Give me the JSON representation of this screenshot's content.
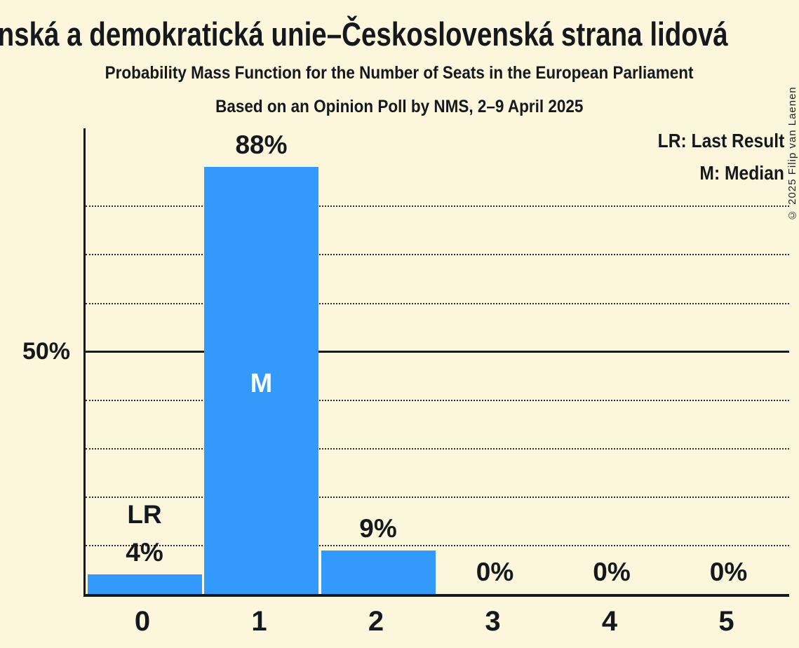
{
  "title": "Křesťanská a demokratická unie–Československá strana lidová",
  "subtitle": "Probability Mass Function for the Number of Seats in the European Parliament",
  "poll_source": "Based on an Opinion Poll by NMS, 2–9 April 2025",
  "legend": {
    "lr": "LR: Last Result",
    "m": "M: Median"
  },
  "copyright": "© 2025 Filip van Laenen",
  "colors": {
    "background": "#FCF7DC",
    "bar": "#3399FA",
    "text": "#15191E",
    "bar_inner_label": "#FFFFFF",
    "gridline": "#2E2E2E",
    "axis": "#15191E"
  },
  "chart_data": {
    "type": "bar",
    "title": "Probability Mass Function for the Number of Seats in the European Parliament",
    "categories": [
      "0",
      "1",
      "2",
      "3",
      "4",
      "5"
    ],
    "values": [
      4,
      88,
      9,
      0,
      0,
      0
    ],
    "value_labels": [
      "4%",
      "88%",
      "9%",
      "0%",
      "0%",
      "0%"
    ],
    "xlabel": "",
    "ylabel": "",
    "grid": "dotted horizontal lines every 10%, solid line at 50%",
    "legend_position": "top-right",
    "y_axis": {
      "tick_label": "50%",
      "tick_value": 50,
      "max": 96,
      "gridlines_pct": [
        10,
        20,
        30,
        40,
        50,
        60,
        70,
        80
      ],
      "solid_pct": 50
    },
    "annotations": {
      "lr_label": "LR",
      "lr_seat_index": 0,
      "m_label": "M",
      "m_seat_index": 1
    }
  }
}
